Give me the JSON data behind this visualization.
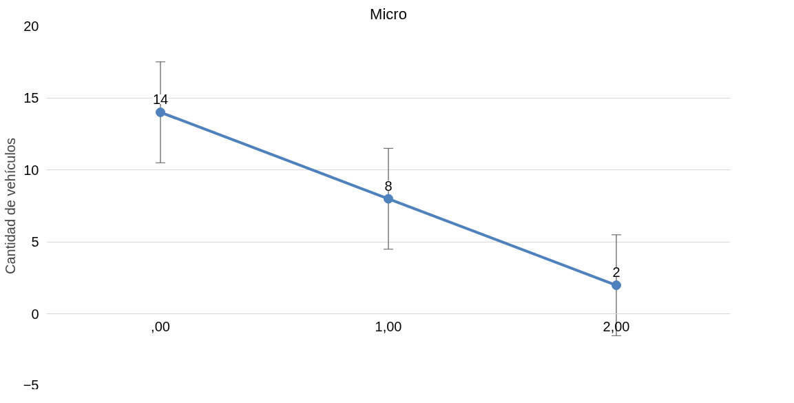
{
  "chart_data": {
    "type": "line",
    "title": "Micro",
    "ylabel": "Cantidad de vehículos",
    "categories": [
      ",00",
      "1,00",
      "2,00"
    ],
    "series": [
      {
        "color": "#4f81bd",
        "values": [
          14,
          8,
          2
        ],
        "errors": [
          3.5,
          3.5,
          3.5
        ]
      }
    ],
    "ylim": [
      -5,
      20
    ],
    "yticks": [
      -5,
      0,
      5,
      10,
      15,
      20
    ],
    "grid": "y",
    "marker": "circle",
    "data_labels": true
  }
}
